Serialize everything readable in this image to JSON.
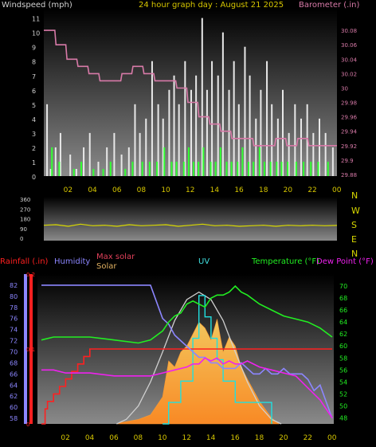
{
  "header": {
    "windspeed_label": "Windspeed (mph)",
    "title": "24 hour graph day : August 21 2025",
    "barometer_label": "Barometer (.in)"
  },
  "compass": {
    "letters": [
      "N",
      "W",
      "S",
      "E",
      "N"
    ]
  },
  "bottom_header": {
    "rainfall_label": "Rainfall (.in)",
    "humidity_label": "Humidity",
    "max_solar_label": "Max solar",
    "solar_label": "Solar",
    "uv_label": "UV",
    "temperature_label": "Temperature (°F)",
    "dewpoint_label": "Dew Point (°F)"
  },
  "colors": {
    "windspeed_label": "#d0d0d0",
    "title": "#d6c600",
    "barometer": "#d87aa8",
    "wind_gust": "#e8e8e8",
    "wind_avg": "#33ff33",
    "direction": "#d8d800",
    "rainfall": "#ff2020",
    "humidity": "#8c86ff",
    "max_solar": "#d0d0d0",
    "max_solar_label": "#e0405a",
    "solar_label": "#e0b060",
    "solar_fill": "#ffb040",
    "uv": "#20e0e0",
    "uv_label": "#40e0e0",
    "temperature": "#22ee22",
    "dewpoint": "#ee22ee"
  },
  "chart_data": [
    {
      "name": "wind",
      "type": "bar",
      "x_ticks": [
        "02",
        "04",
        "06",
        "08",
        "10",
        "12",
        "14",
        "16",
        "18",
        "20",
        "22",
        "00"
      ],
      "y_left_ticks": [
        0,
        1,
        2,
        3,
        4,
        5,
        6,
        7,
        8,
        9,
        10,
        11
      ],
      "y_left_range": [
        0,
        11.7
      ],
      "y_right_ticks": [
        "29.88",
        "29.9",
        "29.92",
        "29.94",
        "29.96",
        "29.98",
        "30",
        "30.02",
        "30.04",
        "30.06",
        "30.08"
      ],
      "y_right_range": [
        29.88,
        30.1
      ],
      "series": [
        {
          "name": "Gust",
          "x": [
            0.2,
            0.5,
            0.9,
            1.3,
            2.1,
            2.6,
            3.2,
            3.7,
            4.4,
            5.1,
            5.7,
            6.3,
            6.9,
            7.4,
            7.8,
            8.3,
            8.8,
            9.3,
            9.7,
            10.2,
            10.6,
            11.0,
            11.5,
            12.0,
            12.4,
            12.9,
            13.3,
            13.7,
            14.2,
            14.6,
            15.1,
            15.5,
            15.9,
            16.4,
            16.8,
            17.3,
            17.7,
            18.2,
            18.6,
            19.1,
            19.5,
            20.0,
            20.5,
            21.0,
            21.5,
            22.0,
            22.5,
            23.0,
            23.6
          ],
          "values": [
            5,
            0.5,
            2,
            3,
            1.5,
            0.5,
            2,
            3,
            1,
            2,
            3,
            1.5,
            2,
            5,
            3,
            4,
            8,
            5,
            4,
            6,
            7,
            5,
            8,
            6,
            7,
            11,
            6,
            8,
            7,
            10,
            6,
            8,
            5,
            9,
            7,
            4,
            6,
            8,
            5,
            4,
            6,
            3,
            5,
            4,
            5,
            3,
            4,
            3,
            2
          ]
        },
        {
          "name": "Average",
          "x": [
            0.6,
            1.2,
            2.4,
            3.0,
            4.0,
            4.8,
            5.4,
            6.6,
            7.2,
            8.0,
            8.6,
            9.2,
            9.8,
            10.4,
            10.8,
            11.4,
            11.8,
            12.2,
            12.6,
            13.0,
            13.6,
            14.0,
            14.4,
            14.9,
            15.3,
            15.8,
            16.2,
            16.7,
            17.1,
            17.6,
            18.0,
            18.5,
            19.0,
            19.4,
            19.9,
            20.6,
            21.2,
            21.8,
            22.4,
            23.2
          ],
          "values": [
            2,
            1,
            0.5,
            1,
            0.5,
            0.5,
            1,
            0.5,
            1,
            1,
            1,
            1,
            2,
            1,
            1,
            1,
            2,
            1,
            1,
            2,
            1,
            1,
            2,
            1,
            1,
            1,
            2,
            1,
            1,
            2,
            1,
            1,
            1,
            1,
            1,
            1,
            1,
            1,
            1,
            1
          ]
        },
        {
          "name": "Barometer",
          "axis": "right",
          "x": [
            0.0,
            0.9,
            1.0,
            1.8,
            1.9,
            2.7,
            2.8,
            3.6,
            3.7,
            4.5,
            4.6,
            5.4,
            5.5,
            6.3,
            6.4,
            7.2,
            7.3,
            8.1,
            8.2,
            9.0,
            9.1,
            9.9,
            10.0,
            10.8,
            10.9,
            11.7,
            11.8,
            12.6,
            12.7,
            13.5,
            13.6,
            14.4,
            14.5,
            15.3,
            15.4,
            16.2,
            16.3,
            17.1,
            17.2,
            18.0,
            18.1,
            18.9,
            19.0,
            19.8,
            19.9,
            20.7,
            20.8,
            21.6,
            21.7,
            22.5,
            22.6,
            23.4,
            23.5,
            24.0
          ],
          "values": [
            30.08,
            30.08,
            30.06,
            30.06,
            30.04,
            30.04,
            30.03,
            30.03,
            30.02,
            30.02,
            30.01,
            30.01,
            30.01,
            30.01,
            30.02,
            30.02,
            30.03,
            30.03,
            30.02,
            30.02,
            30.01,
            30.01,
            30.01,
            30.01,
            30.0,
            30.0,
            29.98,
            29.98,
            29.96,
            29.96,
            29.95,
            29.95,
            29.94,
            29.94,
            29.93,
            29.93,
            29.93,
            29.93,
            29.92,
            29.92,
            29.92,
            29.92,
            29.93,
            29.93,
            29.92,
            29.92,
            29.93,
            29.93,
            29.92,
            29.92,
            29.92,
            29.92,
            29.92,
            29.92
          ]
        }
      ]
    },
    {
      "name": "direction",
      "type": "line",
      "y_ticks": [
        0,
        90,
        180,
        270,
        360
      ],
      "y_range": [
        0,
        360
      ],
      "series": [
        {
          "name": "Direction",
          "x": [
            0,
            1,
            2,
            3,
            4,
            5,
            6,
            7,
            8,
            9,
            10,
            11,
            12,
            13,
            14,
            15,
            16,
            17,
            18,
            19,
            20,
            21,
            22,
            23,
            24
          ],
          "values": [
            120,
            125,
            110,
            130,
            115,
            120,
            110,
            125,
            115,
            120,
            125,
            110,
            120,
            130,
            115,
            120,
            110,
            115,
            120,
            110,
            120,
            115,
            120,
            115,
            118
          ]
        }
      ]
    },
    {
      "name": "climate",
      "type": "line",
      "x_ticks": [
        "02",
        "04",
        "06",
        "08",
        "10",
        "12",
        "14",
        "16",
        "18",
        "20",
        "22",
        "00"
      ],
      "y_humidity_ticks": [
        58,
        60,
        62,
        64,
        66,
        68,
        70,
        72,
        74,
        76,
        78,
        80,
        82
      ],
      "y_humidity_range": [
        57,
        84
      ],
      "y_rain_ticks": [
        "0",
        "0.1",
        "0.2"
      ],
      "y_rain_range": [
        0,
        0.2
      ],
      "y_temp_ticks": [
        48,
        50,
        52,
        54,
        56,
        58,
        60,
        62,
        64,
        66,
        68,
        70
      ],
      "y_temp_range": [
        47,
        72
      ],
      "y_solar_range": [
        0,
        1000
      ],
      "y_uv_range": [
        0,
        7
      ],
      "series": [
        {
          "name": "Rainfall",
          "x": [
            0,
            0.3,
            0.5,
            1.0,
            1.5,
            2.0,
            2.5,
            3.0,
            3.5,
            4.0,
            24
          ],
          "values": [
            0.0,
            0.02,
            0.03,
            0.04,
            0.05,
            0.06,
            0.07,
            0.08,
            0.09,
            0.1,
            0.1
          ]
        },
        {
          "name": "Humidity",
          "x": [
            0,
            2,
            4,
            6,
            8,
            9,
            9.5,
            10,
            10.5,
            11,
            11.5,
            12,
            12.5,
            13,
            13.5,
            14,
            14.5,
            15,
            15.5,
            16,
            16.5,
            17,
            17.5,
            18,
            18.5,
            19,
            19.5,
            20,
            20.5,
            21,
            21.5,
            22,
            22.5,
            23,
            23.5,
            24
          ],
          "values": [
            82,
            82,
            82,
            82,
            82,
            82,
            79,
            76,
            75,
            73,
            72,
            71,
            70,
            69,
            69,
            68,
            68,
            67,
            67,
            67,
            68,
            67,
            66,
            66,
            67,
            66,
            66,
            67,
            66,
            66,
            66,
            65,
            63,
            64,
            61,
            58
          ]
        },
        {
          "name": "Max solar",
          "x": [
            6.2,
            7,
            8,
            9,
            10,
            11,
            12,
            13,
            14,
            15,
            16,
            17,
            18,
            19,
            19.8
          ],
          "values": [
            0,
            30,
            120,
            280,
            480,
            690,
            830,
            880,
            830,
            690,
            480,
            280,
            120,
            30,
            0
          ]
        },
        {
          "name": "Solar",
          "x": [
            6.3,
            8,
            9,
            10,
            10.5,
            11,
            11.5,
            12,
            12.5,
            13,
            13.5,
            14,
            14.5,
            15,
            15.5,
            16,
            16.5,
            17,
            18,
            19,
            19.6
          ],
          "values": [
            5,
            30,
            60,
            180,
            420,
            380,
            480,
            520,
            600,
            680,
            640,
            560,
            700,
            480,
            580,
            520,
            380,
            300,
            150,
            40,
            0
          ]
        },
        {
          "name": "UV",
          "x": [
            10,
            10.5,
            11,
            11.5,
            12,
            12.5,
            13,
            13.5,
            14,
            14.5,
            15,
            15.5,
            16,
            17,
            18,
            19
          ],
          "values": [
            0,
            1,
            1,
            2,
            2,
            4,
            6,
            5,
            4,
            3,
            2,
            2,
            1,
            1,
            1,
            0
          ]
        },
        {
          "name": "Temperature",
          "axis": "temp",
          "x": [
            0,
            1,
            2,
            4,
            6,
            8,
            9,
            10,
            10.5,
            11,
            11.5,
            12,
            12.5,
            13,
            13.5,
            14,
            14.5,
            15,
            15.5,
            16,
            16.5,
            17,
            18,
            19,
            20,
            21,
            22,
            23,
            24
          ],
          "values": [
            61,
            61.5,
            61.5,
            61.5,
            61,
            60.5,
            61,
            62.5,
            64,
            65,
            65.5,
            67,
            67.5,
            67,
            66.5,
            68,
            68.5,
            68.5,
            69,
            70,
            69,
            68.5,
            67,
            66,
            65,
            64.5,
            64,
            63,
            61.5
          ]
        },
        {
          "name": "Dew Point",
          "axis": "temp",
          "x": [
            0,
            1,
            2,
            4,
            6,
            8,
            9,
            10,
            11,
            12,
            12.5,
            13,
            13.5,
            14,
            14.5,
            15,
            15.5,
            16,
            16.5,
            17,
            18,
            19,
            20,
            21,
            22,
            23,
            24
          ],
          "values": [
            56,
            56,
            55.5,
            55.5,
            55,
            55,
            55,
            55.5,
            56,
            56.5,
            57,
            57,
            58,
            57.5,
            58,
            57,
            57.5,
            57,
            57,
            57.5,
            56.5,
            56,
            55.5,
            55,
            53,
            51,
            48
          ]
        }
      ]
    }
  ]
}
